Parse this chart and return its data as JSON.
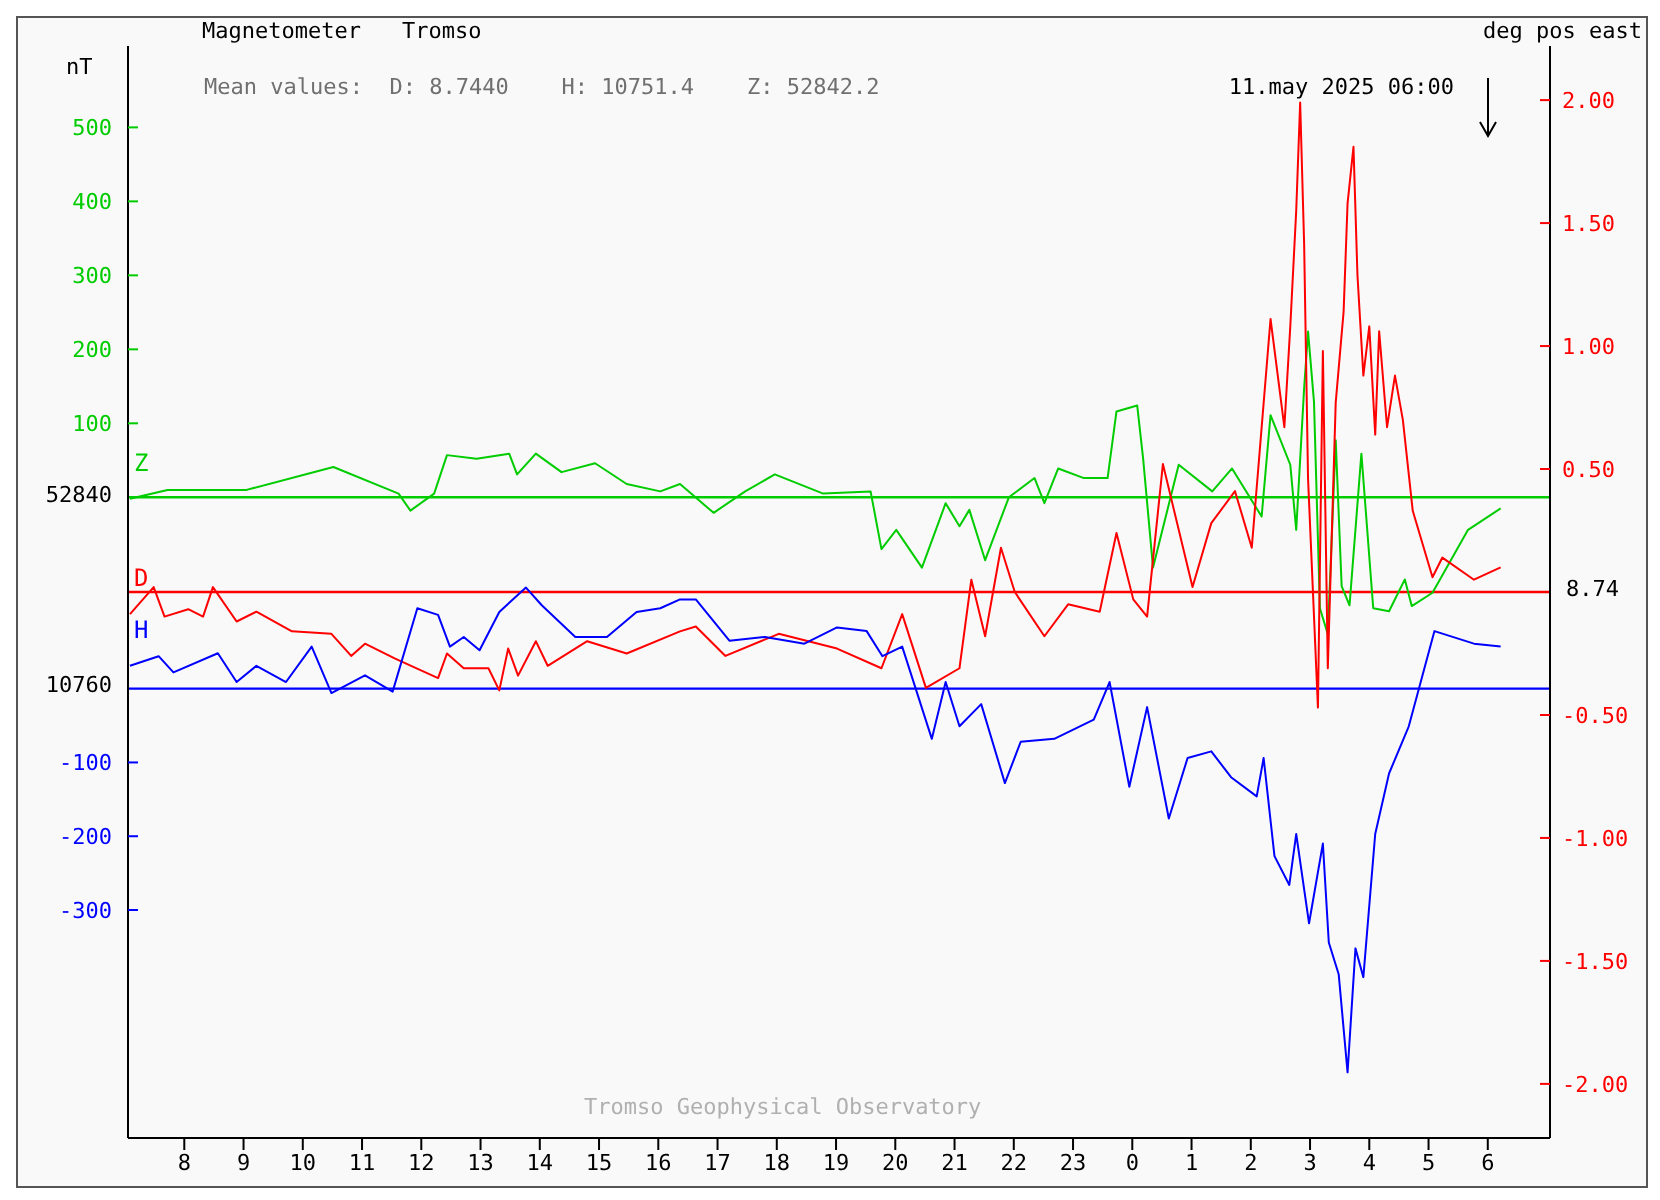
{
  "chart_data": {
    "type": "line",
    "title": "Magnetometer",
    "subtitle": "Tromso",
    "ylabel": "nT",
    "y2label": "deg pos east",
    "annotations": [
      "Mean values:  D: 8.7440    H: 10751.4    Z: 52842.2",
      "11.may 2025 06:00",
      "Tromso Geophysical Observatory",
      "52840",
      "8.74",
      "10760"
    ],
    "xlim": [
      "2025-05-10T07:03",
      "2025-05-11T07:03"
    ],
    "xticks": [
      {
        "value": "2025-05-10T08:00",
        "label": "8"
      },
      {
        "value": "2025-05-10T09:00",
        "label": "9"
      },
      {
        "value": "2025-05-10T10:00",
        "label": "10"
      },
      {
        "value": "2025-05-10T11:00",
        "label": "11"
      },
      {
        "value": "2025-05-10T12:00",
        "label": "12"
      },
      {
        "value": "2025-05-10T13:00",
        "label": "13"
      },
      {
        "value": "2025-05-10T14:00",
        "label": "14"
      },
      {
        "value": "2025-05-10T15:00",
        "label": "15"
      },
      {
        "value": "2025-05-10T16:00",
        "label": "16"
      },
      {
        "value": "2025-05-10T17:00",
        "label": "17"
      },
      {
        "value": "2025-05-10T18:00",
        "label": "18"
      },
      {
        "value": "2025-05-10T19:00",
        "label": "19"
      },
      {
        "value": "2025-05-10T20:00",
        "label": "20"
      },
      {
        "value": "2025-05-10T21:00",
        "label": "21"
      },
      {
        "value": "2025-05-10T22:00",
        "label": "22"
      },
      {
        "value": "2025-05-10T23:00",
        "label": "23"
      },
      {
        "value": "2025-05-11T00:00",
        "label": "0"
      },
      {
        "value": "2025-05-11T01:00",
        "label": "1"
      },
      {
        "value": "2025-05-11T02:00",
        "label": "2"
      },
      {
        "value": "2025-05-11T03:00",
        "label": "3"
      },
      {
        "value": "2025-05-11T04:00",
        "label": "4"
      },
      {
        "value": "2025-05-11T05:00",
        "label": "5"
      },
      {
        "value": "2025-05-11T06:00",
        "label": "6"
      }
    ],
    "ylim": [
      -866,
      610
    ],
    "yticks": [
      100,
      200,
      300,
      400,
      500
    ],
    "y3lim": [
      -609,
      871
    ],
    "y3ticks": [
      -100,
      -200,
      -300
    ],
    "y2lim": [
      -2.22,
      2.22
    ],
    "y2ticks": [
      {
        "value": -2,
        "label": "-2.00"
      },
      {
        "value": -1.5,
        "label": "-1.50"
      },
      {
        "value": -1,
        "label": "-1.00"
      },
      {
        "value": -0.5,
        "label": "-0.50"
      },
      {
        "value": 0.5,
        "label": "0.50"
      },
      {
        "value": 1,
        "label": "1.00"
      },
      {
        "value": 1.5,
        "label": "1.50"
      },
      {
        "value": 2,
        "label": "2.00"
      }
    ],
    "marker": "none",
    "line_style": "solid",
    "ref_lines": [
      {
        "axis": "y",
        "value": 0,
        "color": "#00cc00"
      },
      {
        "axis": "y2",
        "value": 0,
        "color": "#ff0000"
      },
      {
        "axis": "y3",
        "value": 0,
        "color": "#0000ff"
      }
    ],
    "series": [
      {
        "name": "Z",
        "color": "#00cc00",
        "axis": "y",
        "x": [
          "2025-05-10T07:05",
          "2025-05-10T07:43",
          "2025-05-10T09:03",
          "2025-05-10T10:31",
          "2025-05-10T11:37",
          "2025-05-10T11:49",
          "2025-05-10T12:13",
          "2025-05-10T12:26",
          "2025-05-10T12:56",
          "2025-05-10T13:29",
          "2025-05-10T13:37",
          "2025-05-10T13:56",
          "2025-05-10T14:22",
          "2025-05-10T14:56",
          "2025-05-10T15:28",
          "2025-05-10T16:02",
          "2025-05-10T16:22",
          "2025-05-10T16:56",
          "2025-05-10T17:28",
          "2025-05-10T17:58",
          "2025-05-10T18:47",
          "2025-05-10T19:35",
          "2025-05-10T19:46",
          "2025-05-10T20:01",
          "2025-05-10T20:27",
          "2025-05-10T20:51",
          "2025-05-10T21:05",
          "2025-05-10T21:15",
          "2025-05-10T21:31",
          "2025-05-10T21:55",
          "2025-05-10T22:21",
          "2025-05-10T22:31",
          "2025-05-10T22:45",
          "2025-05-10T23:11",
          "2025-05-10T23:35",
          "2025-05-10T23:44",
          "2025-05-11T00:05",
          "2025-05-11T00:11",
          "2025-05-11T00:21",
          "2025-05-11T00:47",
          "2025-05-11T01:21",
          "2025-05-11T01:41",
          "2025-05-11T02:11",
          "2025-05-11T02:20",
          "2025-05-11T02:40",
          "2025-05-11T02:46",
          "2025-05-11T02:54",
          "2025-05-11T02:58",
          "2025-05-11T03:04",
          "2025-05-11T03:10",
          "2025-05-11T03:18",
          "2025-05-11T03:26",
          "2025-05-11T03:32",
          "2025-05-11T03:40",
          "2025-05-11T03:52",
          "2025-05-11T04:04",
          "2025-05-11T04:20",
          "2025-05-11T04:36",
          "2025-05-11T04:43",
          "2025-05-11T05:04",
          "2025-05-11T05:40",
          "2025-05-11T06:13"
        ],
        "values": [
          -2,
          10,
          10,
          41,
          5,
          -18,
          5,
          57,
          52,
          59,
          31,
          59,
          34,
          46,
          18,
          8,
          18,
          -21,
          8,
          31,
          5,
          8,
          -70,
          -44,
          -95,
          -8,
          -39,
          -17,
          -85,
          0,
          26,
          -8,
          39,
          26,
          26,
          116,
          124,
          52,
          -95,
          44,
          8,
          39,
          -26,
          111,
          44,
          -44,
          147,
          224,
          129,
          -150,
          -185,
          77,
          -120,
          -146,
          59,
          -150,
          -154,
          -111,
          -147,
          -129,
          -44,
          -15
        ]
      },
      {
        "name": "D",
        "color": "#ff0000",
        "axis": "y2",
        "x": [
          "2025-05-10T07:05",
          "2025-05-10T07:29",
          "2025-05-10T07:40",
          "2025-05-10T08:04",
          "2025-05-10T08:19",
          "2025-05-10T08:29",
          "2025-05-10T08:53",
          "2025-05-10T09:13",
          "2025-05-10T09:49",
          "2025-05-10T10:29",
          "2025-05-10T10:49",
          "2025-05-10T11:03",
          "2025-05-10T11:33",
          "2025-05-10T12:17",
          "2025-05-10T12:26",
          "2025-05-10T12:43",
          "2025-05-10T13:08",
          "2025-05-10T13:19",
          "2025-05-10T13:28",
          "2025-05-10T13:38",
          "2025-05-10T13:56",
          "2025-05-10T14:08",
          "2025-05-10T14:48",
          "2025-05-10T15:28",
          "2025-05-10T16:22",
          "2025-05-10T16:38",
          "2025-05-10T17:08",
          "2025-05-10T18:02",
          "2025-05-10T19:01",
          "2025-05-10T19:46",
          "2025-05-10T20:07",
          "2025-05-10T20:31",
          "2025-05-10T21:05",
          "2025-05-10T21:17",
          "2025-05-10T21:31",
          "2025-05-10T21:47",
          "2025-05-10T22:01",
          "2025-05-10T22:31",
          "2025-05-10T22:55",
          "2025-05-10T23:27",
          "2025-05-10T23:44",
          "2025-05-11T00:01",
          "2025-05-11T00:15",
          "2025-05-11T00:31",
          "2025-05-11T01:01",
          "2025-05-11T01:20",
          "2025-05-11T01:44",
          "2025-05-11T02:01",
          "2025-05-11T02:20",
          "2025-05-11T02:34",
          "2025-05-11T02:40",
          "2025-05-11T02:46",
          "2025-05-11T02:50",
          "2025-05-11T02:54",
          "2025-05-11T02:58",
          "2025-05-11T03:08",
          "2025-05-11T03:13",
          "2025-05-11T03:18",
          "2025-05-11T03:26",
          "2025-05-11T03:34",
          "2025-05-11T03:38",
          "2025-05-11T03:44",
          "2025-05-11T03:48",
          "2025-05-11T03:54",
          "2025-05-11T04:00",
          "2025-05-11T04:06",
          "2025-05-11T04:10",
          "2025-05-11T04:18",
          "2025-05-11T04:26",
          "2025-05-11T04:34",
          "2025-05-11T04:44",
          "2025-05-11T05:04",
          "2025-05-11T05:14",
          "2025-05-11T05:46",
          "2025-05-11T06:13"
        ],
        "values": [
          -0.09,
          0.02,
          -0.1,
          -0.07,
          -0.1,
          0.02,
          -0.12,
          -0.08,
          -0.16,
          -0.17,
          -0.26,
          -0.21,
          -0.27,
          -0.35,
          -0.25,
          -0.31,
          -0.31,
          -0.4,
          -0.23,
          -0.34,
          -0.2,
          -0.3,
          -0.2,
          -0.25,
          -0.16,
          -0.14,
          -0.26,
          -0.17,
          -0.23,
          -0.31,
          -0.09,
          -0.39,
          -0.31,
          0.05,
          -0.18,
          0.18,
          0.0,
          -0.18,
          -0.05,
          -0.08,
          0.24,
          -0.03,
          -0.1,
          0.52,
          0.02,
          0.28,
          0.41,
          0.18,
          1.11,
          0.67,
          1.08,
          1.55,
          1.99,
          1.42,
          0.46,
          -0.47,
          0.98,
          -0.31,
          0.77,
          1.14,
          1.58,
          1.81,
          1.29,
          0.88,
          1.08,
          0.64,
          1.06,
          0.67,
          0.88,
          0.7,
          0.33,
          0.06,
          0.14,
          0.05,
          0.1
        ]
      },
      {
        "name": "H",
        "color": "#0000ff",
        "axis": "y3",
        "x": [
          "2025-05-10T07:05",
          "2025-05-10T07:34",
          "2025-05-10T07:49",
          "2025-05-10T08:34",
          "2025-05-10T08:53",
          "2025-05-10T09:13",
          "2025-05-10T09:43",
          "2025-05-10T10:09",
          "2025-05-10T10:29",
          "2025-05-10T11:03",
          "2025-05-10T11:31",
          "2025-05-10T11:56",
          "2025-05-10T12:17",
          "2025-05-10T12:29",
          "2025-05-10T12:43",
          "2025-05-10T12:59",
          "2025-05-10T13:19",
          "2025-05-10T13:46",
          "2025-05-10T14:02",
          "2025-05-10T14:36",
          "2025-05-10T15:08",
          "2025-05-10T15:38",
          "2025-05-10T16:02",
          "2025-05-10T16:22",
          "2025-05-10T16:38",
          "2025-05-10T17:12",
          "2025-05-10T17:48",
          "2025-05-10T18:28",
          "2025-05-10T19:01",
          "2025-05-10T19:31",
          "2025-05-10T19:47",
          "2025-05-10T20:07",
          "2025-05-10T20:37",
          "2025-05-10T20:51",
          "2025-05-10T21:05",
          "2025-05-10T21:27",
          "2025-05-10T21:51",
          "2025-05-10T22:07",
          "2025-05-10T22:41",
          "2025-05-10T23:21",
          "2025-05-10T23:37",
          "2025-05-10T23:57",
          "2025-05-11T00:15",
          "2025-05-11T00:37",
          "2025-05-11T00:56",
          "2025-05-11T01:20",
          "2025-05-11T01:40",
          "2025-05-11T02:06",
          "2025-05-11T02:13",
          "2025-05-11T02:24",
          "2025-05-11T02:39",
          "2025-05-11T02:46",
          "2025-05-11T02:59",
          "2025-05-11T03:13",
          "2025-05-11T03:19",
          "2025-05-11T03:29",
          "2025-05-11T03:38",
          "2025-05-11T03:46",
          "2025-05-11T03:54",
          "2025-05-11T04:06",
          "2025-05-11T04:20",
          "2025-05-11T04:40",
          "2025-05-11T05:06",
          "2025-05-11T05:46",
          "2025-05-11T06:13"
        ],
        "values": [
          31,
          44,
          22,
          48,
          9,
          31,
          9,
          57,
          -6,
          18,
          -4,
          109,
          100,
          57,
          70,
          52,
          104,
          137,
          113,
          70,
          70,
          104,
          109,
          121,
          121,
          65,
          70,
          61,
          83,
          78,
          44,
          57,
          -68,
          9,
          -51,
          -21,
          -128,
          -72,
          -68,
          -42,
          9,
          -133,
          -25,
          -176,
          -94,
          -85,
          -120,
          -146,
          -94,
          -227,
          -266,
          -197,
          -318,
          -210,
          -344,
          -387,
          -520,
          -352,
          -391,
          -197,
          -115,
          -51,
          78,
          61,
          57
        ]
      }
    ]
  }
}
